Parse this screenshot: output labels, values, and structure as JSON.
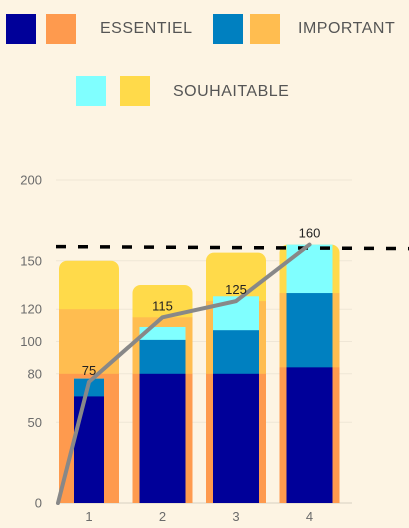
{
  "legend": [
    {
      "color": "#000099",
      "label": ""
    },
    {
      "color": "#fe9a4e",
      "label": "ESSENTIEL"
    },
    {
      "color": "#0080c0",
      "label": ""
    },
    {
      "color": "#ffbd50",
      "label": "IMPORTANT"
    },
    {
      "color": "#80ffff",
      "label": ""
    },
    {
      "color": "#ffda4a",
      "label": "SOUHAITABLE"
    }
  ],
  "chart_data": {
    "type": "bar",
    "categories": [
      "1",
      "2",
      "3",
      "4"
    ],
    "y_ticks": [
      0,
      50,
      80,
      100,
      120,
      150,
      200
    ],
    "ylim": [
      0,
      200
    ],
    "series": [
      {
        "name": "",
        "color": "#000099",
        "values": [
          66,
          80,
          80,
          84
        ]
      },
      {
        "name": "ESSENTIEL",
        "color": "#fe9a4e",
        "values": [
          80,
          80,
          80,
          84
        ]
      },
      {
        "name": "",
        "color": "#0080c0",
        "values": [
          77,
          101,
          107,
          130
        ]
      },
      {
        "name": "IMPORTANT",
        "color": "#ffbd50",
        "values": [
          120,
          115,
          125,
          130
        ]
      },
      {
        "name": "",
        "color": "#80ffff",
        "values": [
          77,
          109,
          128,
          160
        ]
      },
      {
        "name": "SOUHAITABLE",
        "color": "#ffda4a",
        "values": [
          150,
          135,
          155,
          160
        ]
      }
    ],
    "line": {
      "x": [
        0,
        1,
        2,
        3,
        4
      ],
      "values": [
        0,
        75,
        115,
        125,
        160
      ],
      "color": "#888888"
    },
    "data_labels": [
      {
        "x": 1,
        "text": "75"
      },
      {
        "x": 2,
        "text": "115"
      },
      {
        "x": 3,
        "text": "125"
      },
      {
        "x": 4,
        "text": "160"
      }
    ],
    "reference_line": {
      "value": 160,
      "style": "dashed",
      "color": "#000000"
    },
    "grid": true
  }
}
